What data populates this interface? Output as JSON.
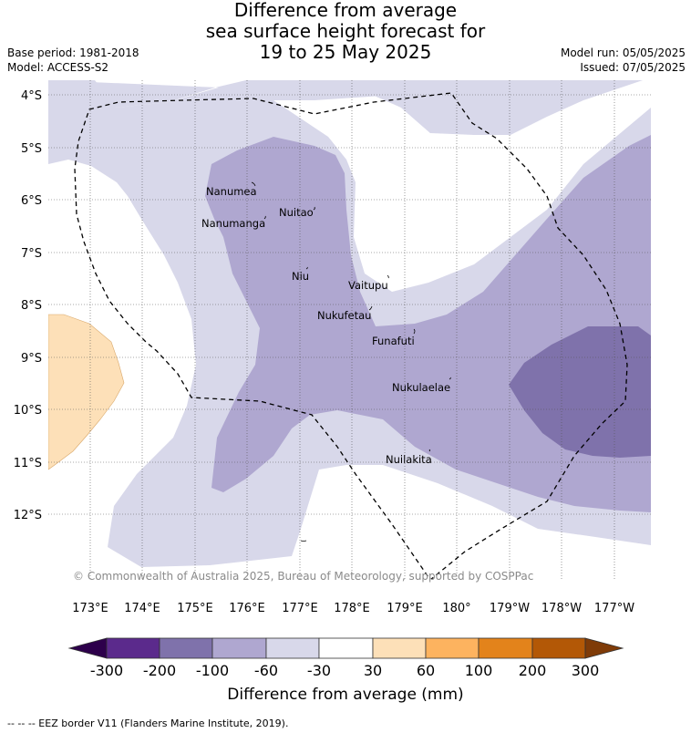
{
  "header": {
    "title_lines": [
      "Difference from average",
      "sea surface height forecast for",
      "19 to 25 May 2025"
    ],
    "base_period": "Base period: 1981-2018",
    "model": "Model: ACCESS-S2",
    "model_run": "Model run: 05/05/2025",
    "issued": "Issued: 07/05/2025"
  },
  "map": {
    "lat_labels": [
      "4°S",
      "5°S",
      "6°S",
      "7°S",
      "8°S",
      "9°S",
      "10°S",
      "11°S",
      "12°S"
    ],
    "lon_labels": [
      "173°E",
      "174°E",
      "175°E",
      "176°E",
      "177°E",
      "178°E",
      "179°E",
      "180°",
      "179°W",
      "178°W",
      "177°W"
    ],
    "islands": [
      "Nanumea",
      "Nuitao",
      "Nanumanga",
      "Niu",
      "Vaitupu",
      "Nukufetau",
      "Funafuti",
      "Nukulaelae",
      "Nuilakita"
    ],
    "copyright": "© Commonwealth of Australia 2025, Bureau of Meteorology, supported by COSPPac",
    "colors": {
      "lt_-200": "#5b2a8c",
      "-200_-100": "#7f72ab",
      "-100_-60": "#afa7d0",
      "-60_-30": "#d8d8ea",
      "-30_30": "#ffffff",
      "30_60": "#fde0b8",
      "60_100": "#fdb35f",
      "100_200": "#e3831b",
      "200_300": "#b35806",
      "gt_300": "#7f3b08"
    }
  },
  "colorbar": {
    "ticks": [
      "-300",
      "-200",
      "-100",
      "-60",
      "-30",
      "30",
      "60",
      "100",
      "200",
      "300"
    ],
    "label": "Difference from average (mm)"
  },
  "footer": {
    "eez_note": "-- -- -- EEZ border V11 (Flanders Marine Institute, 2019)."
  }
}
